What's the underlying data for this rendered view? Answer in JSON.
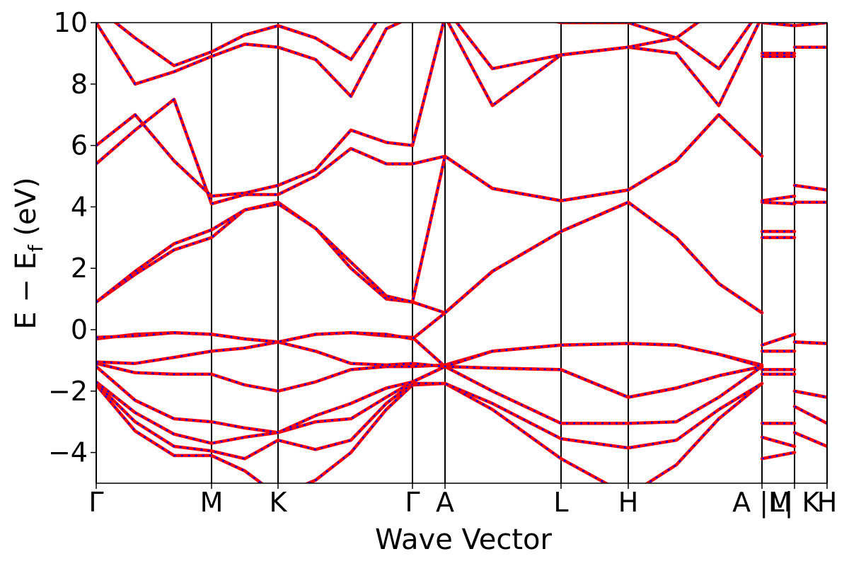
{
  "chart_data": {
    "type": "line",
    "xlabel": "Wave Vector",
    "ylabel": [
      "E − E",
      "f",
      " (eV)"
    ],
    "xlim": [
      0,
      10.33
    ],
    "ylim": [
      -5,
      10
    ],
    "xticks": [
      {
        "value": 0,
        "label": "Γ"
      },
      {
        "value": 1.63,
        "label": "M"
      },
      {
        "value": 2.57,
        "label": "K"
      },
      {
        "value": 4.47,
        "label": "Γ"
      },
      {
        "value": 4.93,
        "label": "A"
      },
      {
        "value": 6.57,
        "label": "L"
      },
      {
        "value": 7.52,
        "label": "H"
      },
      {
        "value": 9.41,
        "label": "A |M"
      },
      {
        "value": 9.87,
        "label": "L| K"
      },
      {
        "value": 10.33,
        "label": "H"
      }
    ],
    "yticks": [
      {
        "value": -4,
        "label": "−4"
      },
      {
        "value": -2,
        "label": "−2"
      },
      0,
      2,
      4,
      6,
      8,
      10
    ],
    "x_grid": true,
    "overlay": {
      "color": "#0000ff",
      "dashed": true
    },
    "x": [
      0,
      0.55,
      1.1,
      1.63,
      2.1,
      2.57,
      3.1,
      3.6,
      4.1,
      4.47,
      4.93,
      5.6,
      6.57,
      7.52,
      8.2,
      8.8,
      9.41,
      9.41,
      9.41,
      9.87,
      9.87,
      9.87,
      10.33
    ],
    "series": [
      {
        "color": "#ff0000",
        "values": [
          -1.8,
          -3.3,
          -4.1,
          -4.1,
          -4.6,
          -5.4,
          -4.9,
          -4.0,
          -2.6,
          -1.8,
          -1.75,
          -2.6,
          -4.2,
          -5.4,
          -4.4,
          -2.9,
          -1.75,
          null,
          -4.2,
          -4.0,
          null,
          -3.35,
          -3.8
        ]
      },
      {
        "color": "#ff0000",
        "values": [
          -1.75,
          -3.0,
          -3.8,
          -3.95,
          -4.2,
          -3.6,
          -3.9,
          -3.6,
          -2.4,
          -1.75,
          -1.75,
          -2.4,
          -3.55,
          -3.85,
          -3.6,
          -2.6,
          -1.75,
          null,
          -3.5,
          -3.8,
          null,
          -2.5,
          -3.05
        ]
      },
      {
        "color": "#ff0000",
        "values": [
          -1.7,
          -2.7,
          -3.4,
          -3.7,
          -3.5,
          -3.35,
          -3.0,
          -2.9,
          -2.2,
          -1.7,
          -1.2,
          -2.0,
          -3.05,
          -3.05,
          -3.0,
          -2.2,
          -1.2,
          null,
          -3.05,
          -3.05,
          null,
          -2.0,
          -2.2
        ]
      },
      {
        "color": "#ff0000",
        "values": [
          -1.2,
          -2.3,
          -2.9,
          -3.0,
          -3.2,
          -3.35,
          -2.8,
          -2.4,
          -1.9,
          -1.7,
          -1.2,
          -1.25,
          -1.3,
          -2.2,
          -1.9,
          -1.5,
          -1.2,
          null,
          -1.45,
          -1.45,
          null,
          -0.4,
          -0.45
        ]
      },
      {
        "color": "#ff0000",
        "values": [
          -1.1,
          -1.4,
          -1.45,
          -1.45,
          -1.8,
          -2.0,
          -1.7,
          -1.3,
          -1.2,
          -1.2,
          -1.15,
          -0.7,
          -0.5,
          -0.45,
          -0.5,
          -0.8,
          -1.15,
          null,
          -1.3,
          -1.3,
          null,
          null,
          null
        ]
      },
      {
        "color": "#ff0000",
        "values": [
          -1.05,
          -1.1,
          -0.9,
          -0.7,
          -0.6,
          -0.4,
          -0.7,
          -1.1,
          -1.15,
          -1.1,
          -1.2,
          -1.25,
          -1.3,
          -2.2,
          -1.9,
          -1.5,
          -1.2,
          null,
          -0.7,
          -0.7,
          null,
          -2.0,
          -2.2
        ]
      },
      {
        "color": "#ff0000",
        "values": [
          -0.3,
          -0.15,
          -0.1,
          -0.15,
          -0.3,
          -0.4,
          -0.15,
          -0.1,
          -0.2,
          -0.25,
          -1.2,
          -0.7,
          -0.5,
          -0.45,
          -0.5,
          -0.8,
          -1.2,
          null,
          -0.5,
          -0.15,
          null,
          -0.4,
          -0.45
        ]
      },
      {
        "color": "#ff0000",
        "values": [
          -0.25,
          -0.2,
          -0.1,
          -0.15,
          -0.3,
          -0.4,
          -0.15,
          -0.1,
          -0.15,
          -0.3,
          0.55,
          1.9,
          3.2,
          4.15,
          3.0,
          1.5,
          0.55,
          null,
          3.0,
          3.0,
          null,
          4.15,
          4.15
        ]
      },
      {
        "color": "#ff0000",
        "values": [
          0.9,
          1.8,
          2.6,
          3.0,
          3.9,
          4.15,
          3.3,
          2.0,
          1.0,
          0.9,
          0.55,
          1.9,
          3.2,
          4.15,
          3.0,
          1.5,
          0.55,
          null,
          3.2,
          3.2,
          null,
          4.7,
          4.55
        ]
      },
      {
        "color": "#ff0000",
        "values": [
          0.9,
          1.9,
          2.8,
          3.25,
          3.9,
          4.1,
          3.3,
          2.2,
          1.1,
          0.9,
          5.65,
          4.6,
          4.2,
          4.55,
          5.5,
          7.0,
          5.65,
          null,
          4.15,
          4.1,
          null,
          null,
          null
        ]
      },
      {
        "color": "#ff0000",
        "values": [
          5.4,
          6.5,
          7.5,
          4.1,
          4.4,
          4.4,
          5.0,
          5.9,
          5.4,
          5.4,
          5.65,
          4.6,
          4.2,
          4.55,
          5.5,
          7.0,
          5.65,
          null,
          4.2,
          4.35,
          null,
          null,
          null
        ]
      },
      {
        "color": "#ff0000",
        "values": [
          6.0,
          7.0,
          5.5,
          4.35,
          4.45,
          4.7,
          5.2,
          6.5,
          6.1,
          6.0,
          10.2,
          7.3,
          8.95,
          9.2,
          9.0,
          7.3,
          10.2,
          null,
          8.9,
          8.9,
          null,
          9.2,
          9.2
        ]
      },
      {
        "color": "#ff0000",
        "values": [
          10.0,
          8.0,
          8.4,
          8.9,
          9.3,
          9.2,
          8.8,
          7.6,
          9.8,
          10.2,
          10.5,
          8.5,
          8.95,
          9.2,
          9.5,
          8.5,
          10.5,
          null,
          9.0,
          9.0,
          null,
          9.9,
          10.0
        ]
      },
      {
        "color": "#ff0000",
        "values": [
          10.5,
          9.5,
          8.6,
          9.05,
          9.6,
          9.9,
          9.5,
          8.8,
          10.5,
          10.5,
          null,
          10.5,
          10.0,
          10.0,
          9.5,
          10.5,
          null,
          null,
          10.0,
          9.9,
          null,
          null,
          null
        ]
      }
    ]
  }
}
